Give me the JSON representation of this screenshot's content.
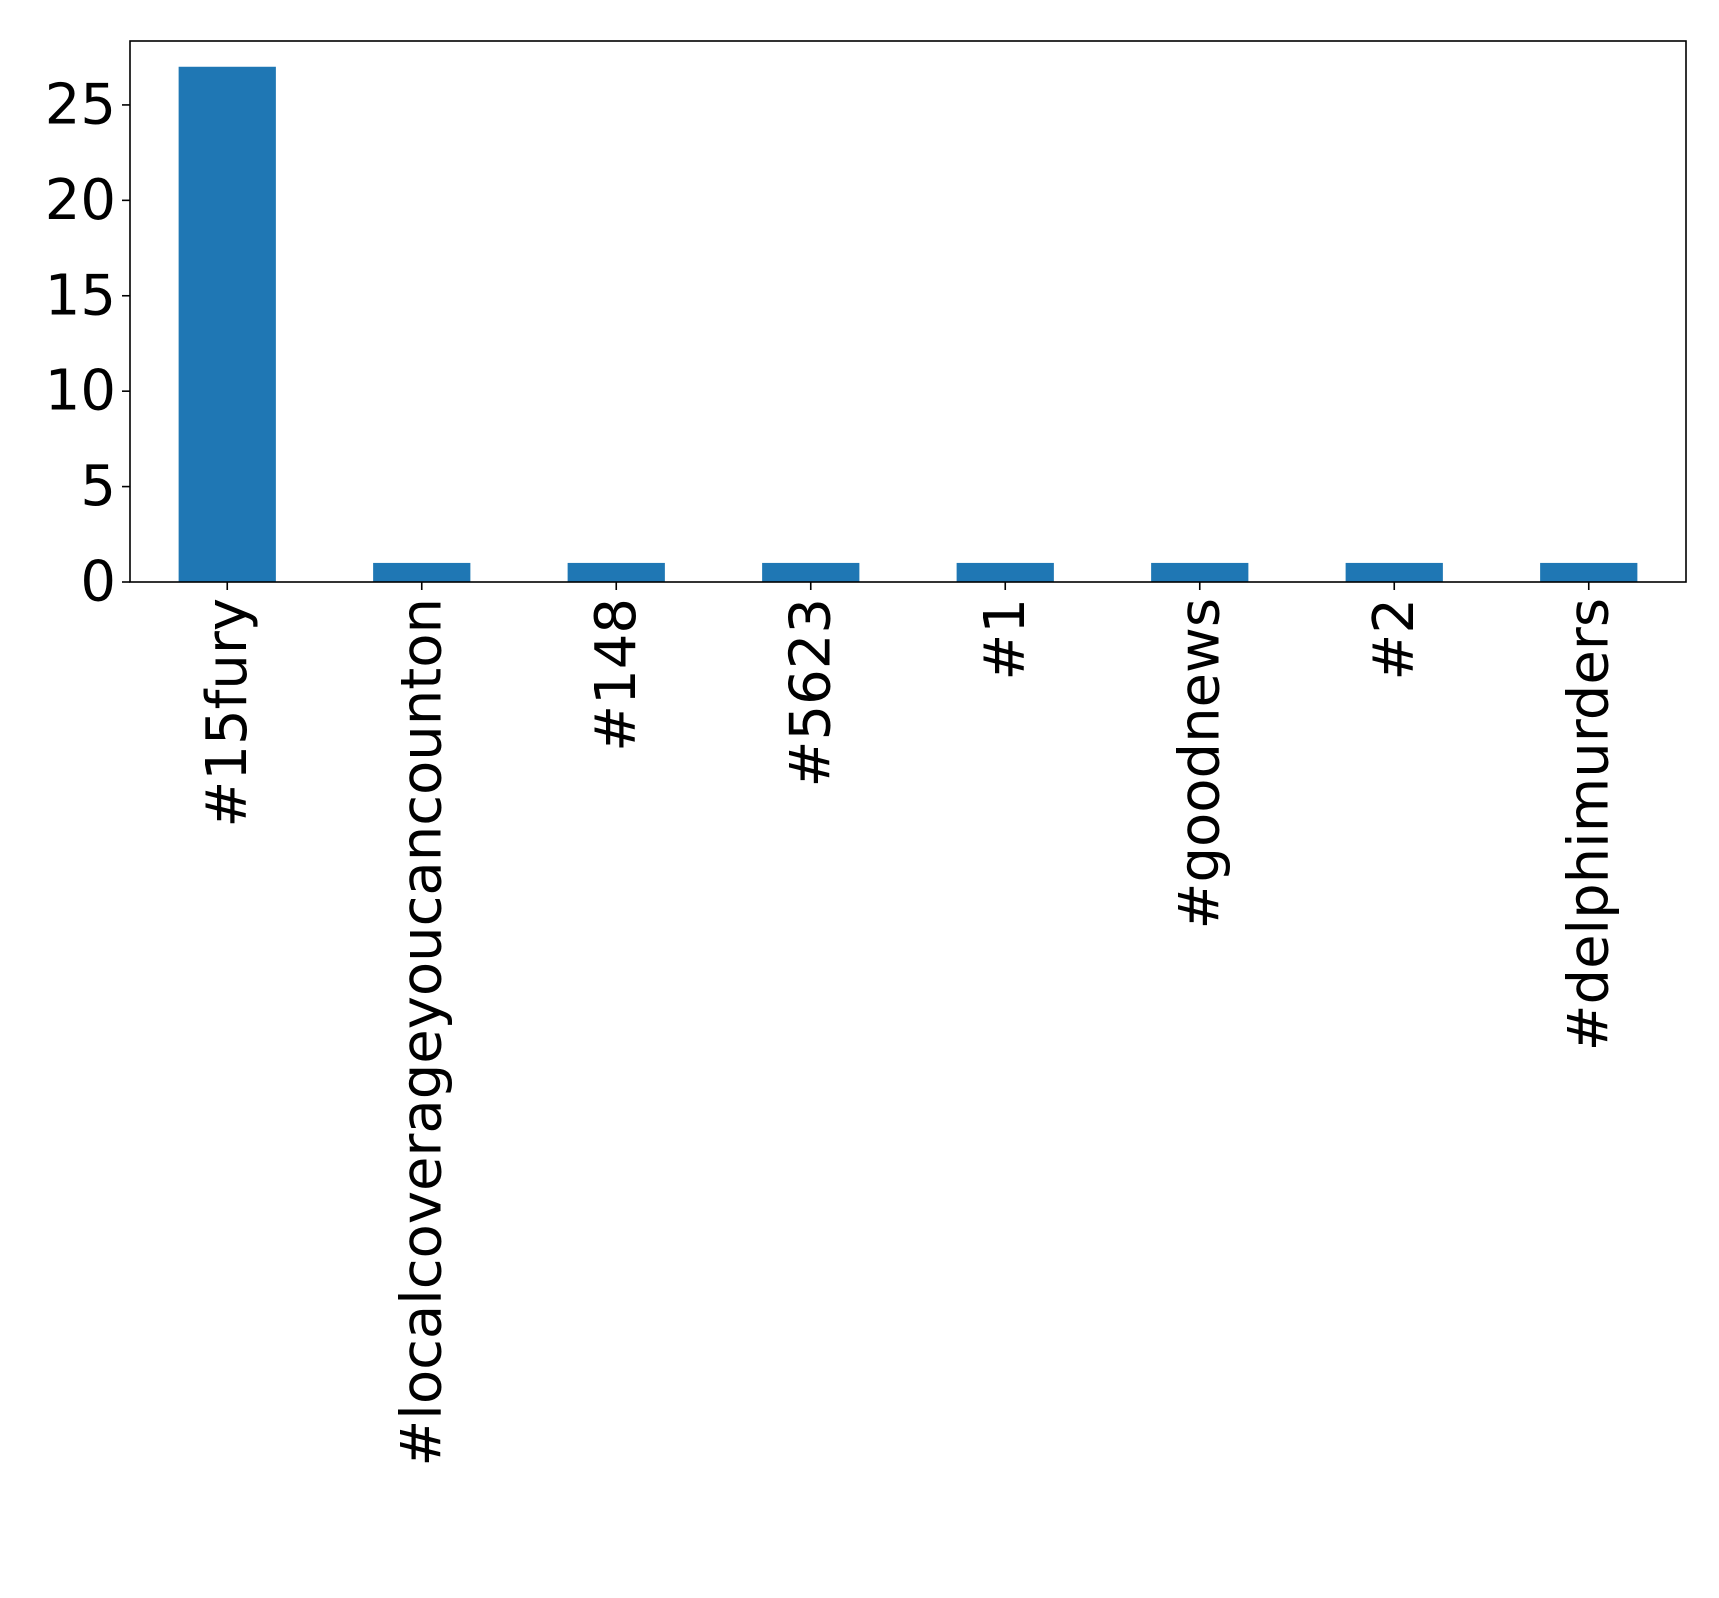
{
  "chart_data": {
    "type": "bar",
    "title": "",
    "xlabel": "",
    "ylabel": "",
    "categories": [
      "#15fury",
      "#localcoverageyoucancounton",
      "#148",
      "#5623",
      "#1",
      "#goodnews",
      "#2",
      "#delphimurders"
    ],
    "values": [
      27,
      1,
      1,
      1,
      1,
      1,
      1,
      1
    ],
    "ylim": [
      0,
      28.35
    ],
    "yticks": [
      0,
      5,
      10,
      15,
      20,
      25
    ],
    "grid": false,
    "legend": "none",
    "bar_color": "#1f77b4"
  }
}
